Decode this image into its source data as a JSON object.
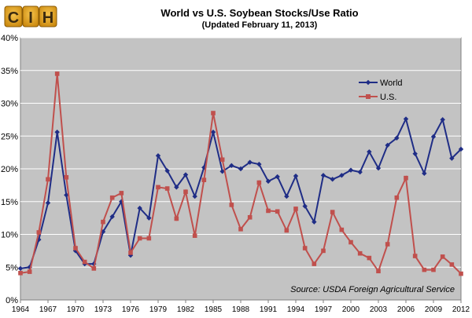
{
  "logo": {
    "text": "CIH",
    "icon": "cih-logo"
  },
  "chart_data": {
    "type": "line",
    "title": "World vs U.S. Soybean Stocks/Use Ratio",
    "subtitle": "(Updated February 11, 2013)",
    "xlabel": "",
    "ylabel": "",
    "x": [
      1964,
      1965,
      1966,
      1967,
      1968,
      1969,
      1970,
      1971,
      1972,
      1973,
      1974,
      1975,
      1976,
      1977,
      1978,
      1979,
      1980,
      1981,
      1982,
      1983,
      1984,
      1985,
      1986,
      1987,
      1988,
      1989,
      1990,
      1991,
      1992,
      1993,
      1994,
      1995,
      1996,
      1997,
      1998,
      1999,
      2000,
      2001,
      2002,
      2003,
      2004,
      2005,
      2006,
      2007,
      2008,
      2009,
      2010,
      2011,
      2012
    ],
    "x_ticks": [
      "1964",
      "1967",
      "1970",
      "1973",
      "1976",
      "1979",
      "1982",
      "1985",
      "1988",
      "1991",
      "1994",
      "1997",
      "2000",
      "2003",
      "2006",
      "2009",
      "2012"
    ],
    "y_ticks": [
      "0%",
      "5%",
      "10%",
      "15%",
      "20%",
      "25%",
      "30%",
      "35%",
      "40%"
    ],
    "ylim": [
      0,
      40
    ],
    "y_unit": "%",
    "grid": "horizontal",
    "legend_position": "right",
    "series": [
      {
        "name": "World",
        "color": "#1f2d86",
        "marker": "diamond",
        "values": [
          4.8,
          5.0,
          9.2,
          14.8,
          25.6,
          16.0,
          7.5,
          5.5,
          5.5,
          10.4,
          12.7,
          15.0,
          6.8,
          14.0,
          12.5,
          22.0,
          19.7,
          17.2,
          19.1,
          15.8,
          20.2,
          25.6,
          19.6,
          20.5,
          20.0,
          21.0,
          20.7,
          18.1,
          18.8,
          15.8,
          18.9,
          14.3,
          11.9,
          19.0,
          18.4,
          19.0,
          19.8,
          19.5,
          22.6,
          20.1,
          23.6,
          24.7,
          27.6,
          22.3,
          19.3,
          24.9,
          27.5,
          21.6,
          23.0
        ]
      },
      {
        "name": "U.S.",
        "color": "#c0504d",
        "marker": "square",
        "values": [
          4.1,
          4.3,
          10.3,
          18.4,
          34.5,
          18.7,
          7.9,
          5.8,
          4.8,
          11.9,
          15.6,
          16.3,
          7.2,
          9.4,
          9.4,
          17.2,
          17.0,
          12.4,
          16.5,
          9.8,
          18.3,
          28.5,
          21.4,
          14.5,
          10.8,
          12.6,
          17.9,
          13.6,
          13.5,
          10.6,
          13.9,
          7.9,
          5.5,
          7.5,
          13.4,
          10.7,
          8.8,
          7.1,
          6.4,
          4.4,
          8.5,
          15.6,
          18.6,
          6.7,
          4.6,
          4.6,
          6.6,
          5.4,
          4.0
        ]
      }
    ],
    "annotations": [
      "Source: USDA Foreign Agricultural Service"
    ]
  }
}
